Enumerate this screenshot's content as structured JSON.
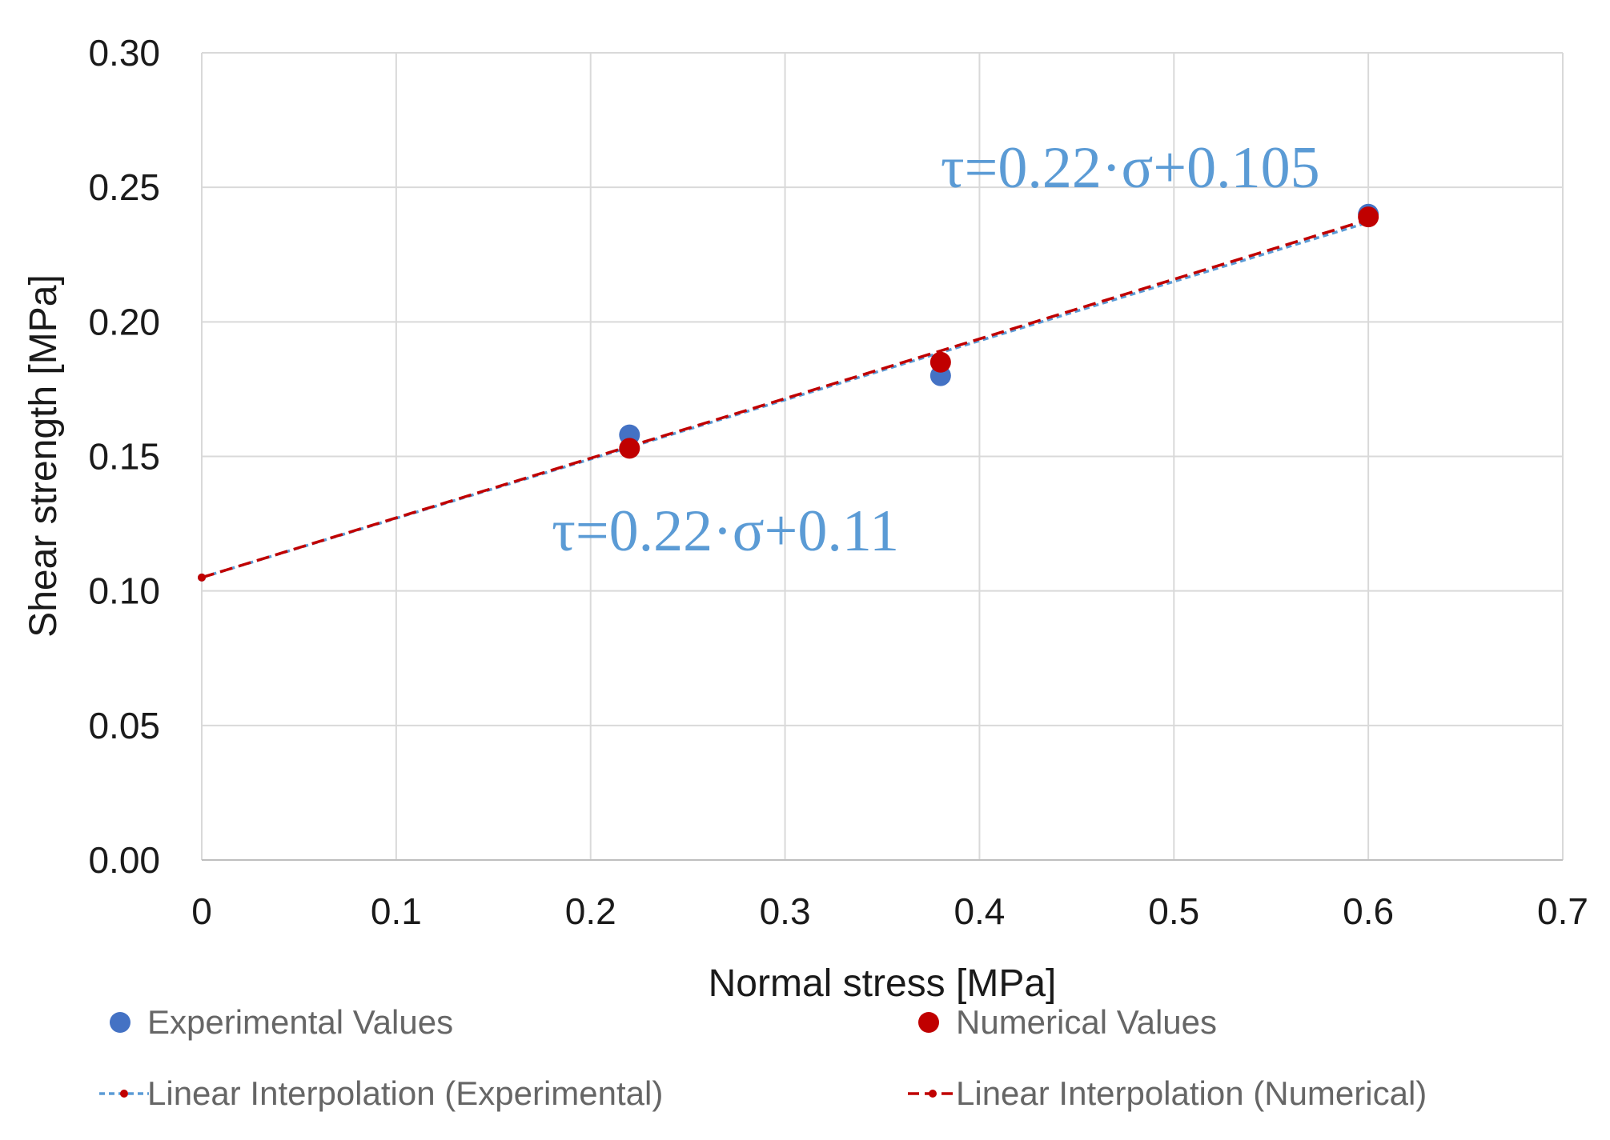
{
  "chart_data": {
    "type": "scatter",
    "title": "",
    "xlabel": "Normal stress [MPa]",
    "ylabel": "Shear strength [MPa]",
    "xlim": [
      0,
      0.7
    ],
    "ylim": [
      0,
      0.3
    ],
    "x_ticks": [
      "0",
      "0.1",
      "0.2",
      "0.3",
      "0.4",
      "0.5",
      "0.6",
      "0.7"
    ],
    "y_ticks": [
      "0.00",
      "0.05",
      "0.10",
      "0.15",
      "0.20",
      "0.25",
      "0.30"
    ],
    "grid": true,
    "series": [
      {
        "name": "Experimental Values",
        "kind": "points",
        "color": "#4472c4",
        "x": [
          0.22,
          0.38,
          0.6
        ],
        "y": [
          0.158,
          0.18,
          0.24
        ]
      },
      {
        "name": "Numerical Values",
        "kind": "points",
        "color": "#c00000",
        "x": [
          0.22,
          0.38,
          0.6
        ],
        "y": [
          0.153,
          0.185,
          0.239
        ]
      },
      {
        "name": "Linear Interpolation (Experimental)",
        "kind": "line",
        "dash": "fine",
        "color": "#5b9bd5",
        "x": [
          0,
          0.6
        ],
        "y": [
          0.105,
          0.237
        ]
      },
      {
        "name": "Linear Interpolation (Numerical)",
        "kind": "line",
        "dash": "dashed",
        "color": "#c00000",
        "x": [
          0,
          0.6
        ],
        "y": [
          0.105,
          0.238
        ]
      }
    ],
    "annotations": [
      {
        "text": "τ=0.22·σ+0.105",
        "anchor_x": 0.38,
        "anchor_y": 0.25
      },
      {
        "text": "τ=0.22·σ+0.11",
        "anchor_x": 0.18,
        "anchor_y": 0.115
      }
    ],
    "legend": {
      "placement": "bottom",
      "items": [
        {
          "label": "Experimental Values",
          "symbol": "dot",
          "color": "#4472c4"
        },
        {
          "label": "Numerical Values",
          "symbol": "dot",
          "color": "#c00000"
        },
        {
          "label": "Linear Interpolation (Experimental)",
          "symbol": "line",
          "color": "#5b9bd5"
        },
        {
          "label": "Linear Interpolation (Numerical)",
          "symbol": "line",
          "color": "#c00000"
        }
      ]
    }
  }
}
